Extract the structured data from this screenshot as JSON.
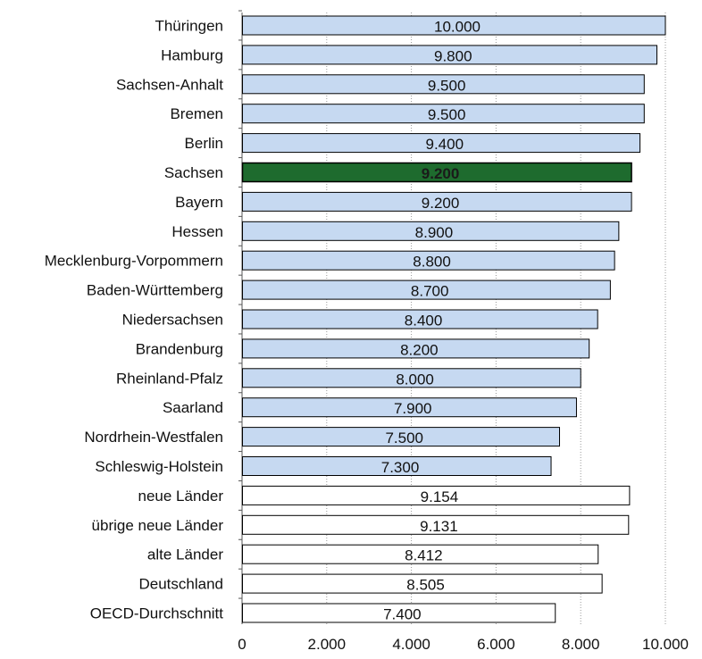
{
  "chart_data": {
    "type": "bar",
    "orientation": "horizontal",
    "categories": [
      "Thüringen",
      "Hamburg",
      "Sachsen-Anhalt",
      "Bremen",
      "Berlin",
      "Sachsen",
      "Bayern",
      "Hessen",
      "Mecklenburg-Vorpommern",
      "Baden-Württemberg",
      "Niedersachsen",
      "Brandenburg",
      "Rheinland-Pfalz",
      "Saarland",
      "Nordrhein-Westfalen",
      "Schleswig-Holstein",
      "neue Länder",
      "übrige neue Länder",
      "alte Länder",
      "Deutschland",
      "OECD-Durchschnitt"
    ],
    "values": [
      10000,
      9800,
      9500,
      9500,
      9400,
      9200,
      9200,
      8900,
      8800,
      8700,
      8400,
      8200,
      8000,
      7900,
      7500,
      7300,
      9154,
      9131,
      8412,
      8505,
      7400
    ],
    "value_labels": [
      "10.000",
      "9.800",
      "9.500",
      "9.500",
      "9.400",
      "9.200",
      "9.200",
      "8.900",
      "8.800",
      "8.700",
      "8.400",
      "8.200",
      "8.000",
      "7.900",
      "7.500",
      "7.300",
      "9.154",
      "9.131",
      "8.412",
      "8.505",
      "7.400"
    ],
    "bar_groups": [
      "state",
      "state",
      "state",
      "state",
      "state",
      "highlight",
      "state",
      "state",
      "state",
      "state",
      "state",
      "state",
      "state",
      "state",
      "state",
      "state",
      "aggregate",
      "aggregate",
      "aggregate",
      "aggregate",
      "aggregate"
    ],
    "colors": {
      "state": "#c6d9f1",
      "highlight": "#1e6b2e",
      "aggregate": "#ffffff",
      "outline": "#000000",
      "grid": "#999999"
    },
    "xlim": [
      0,
      10000
    ],
    "xticks": [
      0,
      2000,
      4000,
      6000,
      8000,
      10000
    ],
    "xtick_labels": [
      "0",
      "2.000",
      "4.000",
      "6.000",
      "8.000",
      "10.000"
    ],
    "grid": true,
    "title": "",
    "xlabel": "",
    "ylabel": ""
  }
}
